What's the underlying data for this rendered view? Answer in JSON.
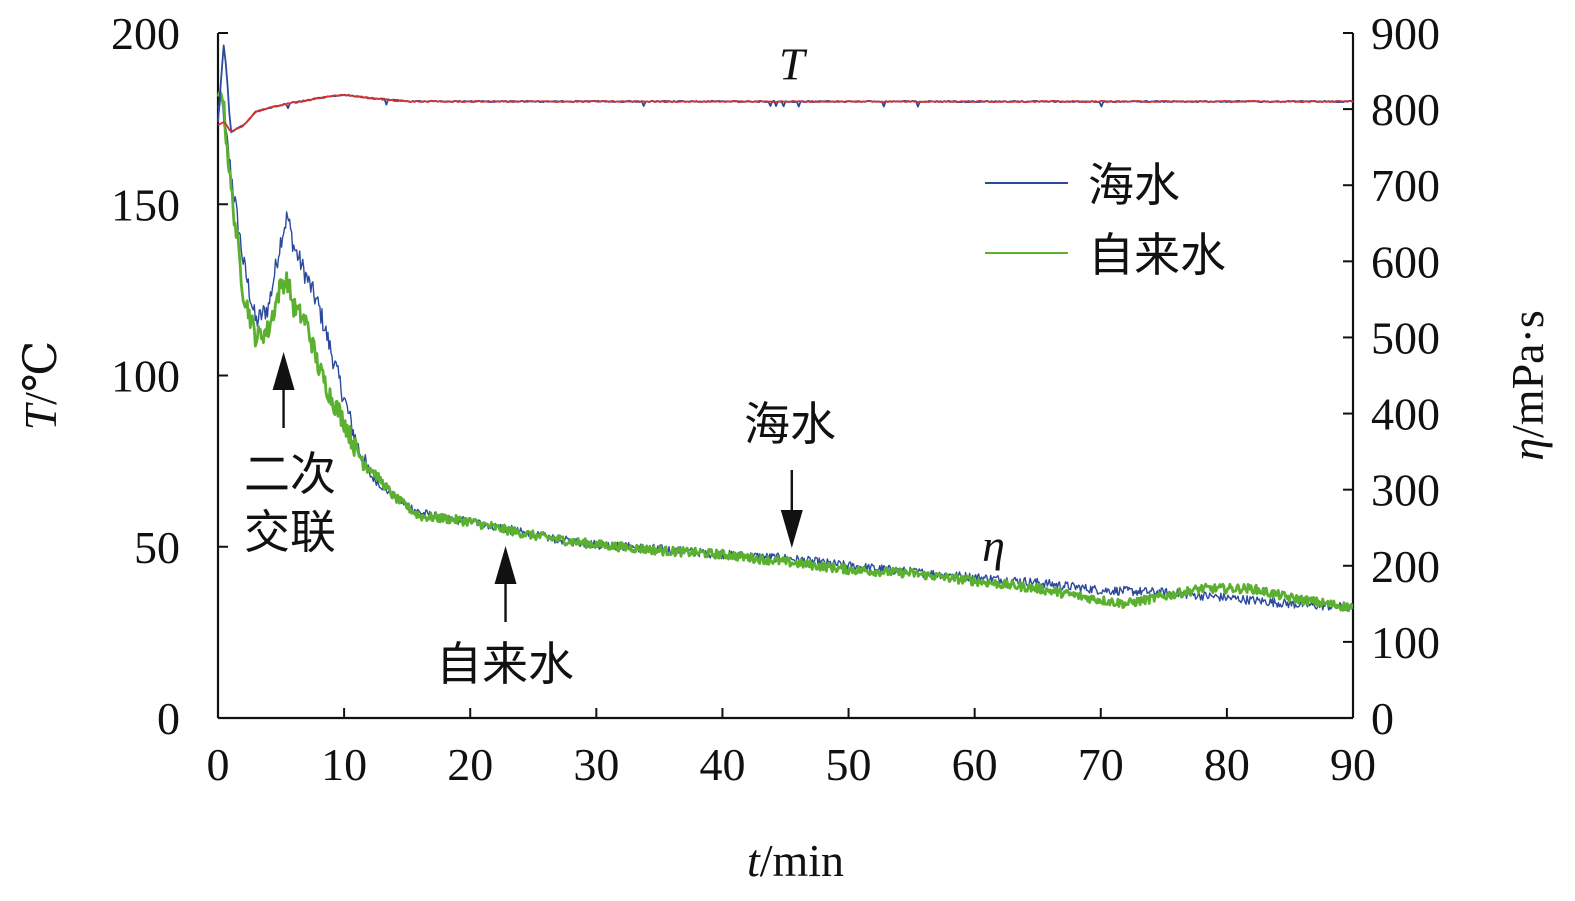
{
  "chart_data": {
    "type": "line",
    "x_axis": {
      "label_italic": "t",
      "label_unit": "/min",
      "range": [
        0,
        90
      ],
      "ticks": [
        "0",
        "10",
        "20",
        "30",
        "40",
        "50",
        "60",
        "70",
        "80",
        "90"
      ]
    },
    "y_left": {
      "label_italic": "T",
      "label_unit": "/℃",
      "range": [
        0,
        200
      ],
      "ticks": [
        "0",
        "50",
        "100",
        "150",
        "200"
      ]
    },
    "y_right": {
      "label_italic": "η",
      "label_unit": "/mPa·s",
      "range": [
        0,
        900
      ],
      "ticks": [
        "0",
        "100",
        "200",
        "300",
        "400",
        "500",
        "600",
        "700",
        "800",
        "900"
      ]
    },
    "grid": false,
    "legend": {
      "placement": "top-right",
      "entries": [
        {
          "label": "海水",
          "color": "#2b4a9b"
        },
        {
          "label": "自来水",
          "color": "#5bb030"
        }
      ]
    },
    "curve_labels": {
      "temperature": "T",
      "viscosity": "η"
    },
    "annotations": [
      {
        "text_lines": [
          "二次",
          "交联"
        ],
        "arrow_at_x": 5.2,
        "direction": "up"
      },
      {
        "text_lines": [
          "海水"
        ],
        "arrow_at_x": 45.5,
        "direction": "down"
      },
      {
        "text_lines": [
          "自来水"
        ],
        "arrow_at_x": 22.8,
        "direction": "up"
      }
    ],
    "series": [
      {
        "name": "海水",
        "quantity": "viscosity",
        "axis": "right",
        "color": "#2b4a9b",
        "x": [
          0,
          0.3,
          1,
          2,
          3,
          4,
          5,
          5.5,
          6,
          7,
          8,
          9,
          10,
          11,
          12,
          14,
          16,
          18,
          20,
          22,
          25,
          28,
          30,
          35,
          40,
          45,
          50,
          55,
          60,
          65,
          70,
          75,
          80,
          85,
          90
        ],
        "values": [
          800,
          810,
          720,
          600,
          520,
          540,
          630,
          660,
          620,
          580,
          540,
          480,
          420,
          360,
          320,
          290,
          270,
          262,
          258,
          252,
          240,
          232,
          228,
          222,
          215,
          210,
          200,
          192,
          185,
          178,
          168,
          165,
          158,
          150,
          145
        ]
      },
      {
        "name": "自来水",
        "quantity": "viscosity",
        "axis": "right",
        "color": "#5bb030",
        "x": [
          0,
          0.3,
          1,
          2,
          3,
          4,
          5,
          5.5,
          6,
          7,
          8,
          9,
          10,
          11,
          12,
          14,
          16,
          18,
          20,
          22,
          25,
          28,
          30,
          35,
          40,
          45,
          50,
          55,
          60,
          65,
          70,
          72,
          75,
          78,
          80,
          82,
          85,
          88,
          90
        ],
        "values": [
          805,
          830,
          700,
          560,
          500,
          510,
          570,
          575,
          540,
          520,
          460,
          420,
          390,
          350,
          330,
          290,
          265,
          262,
          258,
          250,
          240,
          232,
          228,
          220,
          215,
          205,
          195,
          190,
          180,
          170,
          155,
          150,
          160,
          170,
          170,
          170,
          158,
          150,
          145
        ]
      },
      {
        "name": "海水",
        "quantity": "temperature",
        "axis": "left",
        "color": "#2b4a9b",
        "x": [
          0,
          0.5,
          1,
          2,
          3,
          5,
          8,
          10,
          12,
          15,
          20,
          30,
          40,
          50,
          60,
          70,
          80,
          90
        ],
        "values": [
          174,
          199,
          171,
          173,
          177,
          179,
          181,
          182,
          181,
          180,
          180,
          180,
          180,
          180,
          180,
          180,
          180,
          180
        ]
      },
      {
        "name": "自来水",
        "quantity": "temperature",
        "axis": "left",
        "color": "#d8312c",
        "x": [
          0,
          0.5,
          1,
          2,
          3,
          5,
          8,
          10,
          12,
          15,
          20,
          30,
          40,
          50,
          60,
          70,
          80,
          90
        ],
        "values": [
          173,
          174,
          171,
          173,
          177,
          179,
          181,
          182,
          181,
          180,
          180,
          180,
          180,
          180,
          180,
          180,
          180,
          180
        ]
      }
    ]
  }
}
